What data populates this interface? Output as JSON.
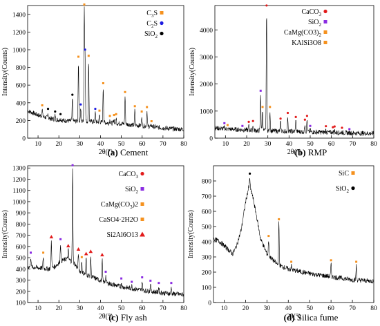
{
  "figure": {
    "captions": [
      {
        "letter": "(a)",
        "text": "Cement"
      },
      {
        "letter": "(b)",
        "text": "RMP"
      },
      {
        "letter": "(c)",
        "text": "Fly ash"
      },
      {
        "letter": "(d)",
        "text": "Silica fume"
      }
    ]
  },
  "colors": {
    "pattern": "#000000",
    "orange": "#f5911e",
    "blue": "#1d1be0",
    "black": "#000000",
    "red": "#e21b1b",
    "purple": "#8a2be2"
  },
  "chart_data": [
    {
      "type": "line",
      "xlabel": "2θ(°)",
      "ylabel": "Intensity(Counts)",
      "xlim": [
        5,
        80
      ],
      "ylim": [
        0,
        1500
      ],
      "xticks": [
        "10",
        "20",
        "30",
        "40",
        "50",
        "60",
        "70",
        "80"
      ],
      "yticks": [
        "0",
        "200",
        "400",
        "600",
        "800",
        "1000",
        "1200",
        "1400"
      ],
      "xtick_values": [
        10,
        20,
        30,
        40,
        50,
        60,
        70,
        80
      ],
      "ytick_values": [
        0,
        200,
        400,
        600,
        800,
        1000,
        1200,
        1400
      ],
      "baseline": [
        [
          5,
          310
        ],
        [
          10,
          260
        ],
        [
          15,
          225
        ],
        [
          20,
          205
        ],
        [
          25,
          195
        ],
        [
          30,
          190
        ],
        [
          35,
          190
        ],
        [
          40,
          180
        ],
        [
          45,
          170
        ],
        [
          50,
          165
        ],
        [
          55,
          150
        ],
        [
          60,
          140
        ],
        [
          65,
          130
        ],
        [
          70,
          115
        ],
        [
          75,
          105
        ],
        [
          80,
          100
        ]
      ],
      "peaks": [
        [
          12,
          340,
          "orange"
        ],
        [
          14.8,
          300,
          "black"
        ],
        [
          18.2,
          270,
          "black"
        ],
        [
          20.8,
          240,
          "black"
        ],
        [
          26.5,
          460,
          "black"
        ],
        [
          29.4,
          890,
          "orange"
        ],
        [
          30.5,
          350,
          "blue"
        ],
        [
          32.2,
          1480,
          "orange"
        ],
        [
          32.6,
          970,
          "blue"
        ],
        [
          34.3,
          900,
          "orange"
        ],
        [
          37.5,
          300,
          "blue"
        ],
        [
          39.5,
          280,
          "orange"
        ],
        [
          41.3,
          590,
          "orange"
        ],
        [
          44.5,
          220,
          "orange"
        ],
        [
          46.5,
          230,
          "orange"
        ],
        [
          47.5,
          240,
          "orange"
        ],
        [
          51.8,
          490,
          "orange"
        ],
        [
          56.5,
          330,
          "orange"
        ],
        [
          59.8,
          270,
          "orange"
        ],
        [
          62.3,
          320,
          "orange"
        ],
        [
          64.5,
          160,
          "orange"
        ]
      ],
      "legend": [
        {
          "label": "C3S",
          "main": "C",
          "sub": "3",
          "tail": "S",
          "color": "orange"
        },
        {
          "label": "C2S",
          "main": "C",
          "sub": "2",
          "tail": "S",
          "color": "blue"
        },
        {
          "label": "SiO2",
          "main": "SiO",
          "sub": "2",
          "tail": "",
          "color": "black"
        }
      ]
    },
    {
      "type": "line",
      "xlabel": "2θ(°)",
      "ylabel": "Intensity(Counts)",
      "xlim": [
        5,
        80
      ],
      "ylim": [
        0,
        4900
      ],
      "xticks": [
        "10",
        "20",
        "30",
        "40",
        "50",
        "60",
        "70",
        "80"
      ],
      "yticks": [
        "0",
        "1000",
        "2000",
        "3000",
        "4000"
      ],
      "xtick_values": [
        10,
        20,
        30,
        40,
        50,
        60,
        70,
        80
      ],
      "ytick_values": [
        0,
        1000,
        2000,
        3000,
        4000
      ],
      "baseline": [
        [
          5,
          380
        ],
        [
          10,
          340
        ],
        [
          15,
          320
        ],
        [
          20,
          300
        ],
        [
          25,
          280
        ],
        [
          30,
          270
        ],
        [
          40,
          250
        ],
        [
          50,
          230
        ],
        [
          60,
          210
        ],
        [
          70,
          190
        ],
        [
          80,
          170
        ]
      ],
      "peaks": [
        [
          9.5,
          450,
          "purple"
        ],
        [
          11,
          380,
          "orange"
        ],
        [
          18,
          350,
          "purple"
        ],
        [
          21,
          500,
          "red"
        ],
        [
          23,
          530,
          "red"
        ],
        [
          26.6,
          1650,
          "purple"
        ],
        [
          27.5,
          1050,
          "orange"
        ],
        [
          29.4,
          4800,
          "red"
        ],
        [
          31,
          1050,
          "orange"
        ],
        [
          36,
          620,
          "red"
        ],
        [
          39.4,
          830,
          "red"
        ],
        [
          43.2,
          680,
          "red"
        ],
        [
          47.5,
          580,
          "red"
        ],
        [
          48.5,
          720,
          "red"
        ],
        [
          50,
          350,
          "purple"
        ],
        [
          57.4,
          340,
          "red"
        ],
        [
          60.7,
          300,
          "red"
        ],
        [
          61.5,
          330,
          "red"
        ],
        [
          65,
          280,
          "red"
        ],
        [
          68.5,
          230,
          "purple"
        ]
      ],
      "legend": [
        {
          "label": "CaCO3",
          "main": "CaCO",
          "sub": "3",
          "tail": "",
          "color": "red"
        },
        {
          "label": "SiO2",
          "main": "SiO",
          "sub": "2",
          "tail": "",
          "color": "purple"
        },
        {
          "label": "CaMg(CO3)2",
          "main": "CaMg(CO3)",
          "sub": "2",
          "tail": "",
          "color": "orange"
        },
        {
          "label": "KAlSi3O8",
          "main": "KAlSi3O8",
          "sub": "",
          "tail": "",
          "color": "orange"
        }
      ]
    },
    {
      "type": "line",
      "xlabel": "2θ(°)",
      "ylabel": "Intensity(Counts)",
      "xlim": [
        5,
        80
      ],
      "ylim": [
        100,
        1320
      ],
      "xticks": [
        "10",
        "20",
        "30",
        "40",
        "50",
        "60",
        "70",
        "80"
      ],
      "yticks": [
        "100",
        "200",
        "300",
        "400",
        "500",
        "600",
        "700",
        "800",
        "900",
        "1000",
        "1100",
        "1200",
        "1300"
      ],
      "xtick_values": [
        10,
        20,
        30,
        40,
        50,
        60,
        70,
        80
      ],
      "ytick_values": [
        100,
        200,
        300,
        400,
        500,
        600,
        700,
        800,
        900,
        1000,
        1100,
        1200,
        1300
      ],
      "baseline": [
        [
          5,
          420
        ],
        [
          10,
          410
        ],
        [
          15,
          400
        ],
        [
          18,
          420
        ],
        [
          21,
          470
        ],
        [
          24,
          490
        ],
        [
          27,
          460
        ],
        [
          30,
          380
        ],
        [
          33,
          350
        ],
        [
          37,
          320
        ],
        [
          42,
          280
        ],
        [
          50,
          240
        ],
        [
          60,
          210
        ],
        [
          70,
          185
        ],
        [
          80,
          170
        ]
      ],
      "peaks": [
        [
          6.5,
          520,
          "purple"
        ],
        [
          12.5,
          520,
          "orange"
        ],
        [
          16.4,
          660,
          "red"
        ],
        [
          20.8,
          640,
          "purple"
        ],
        [
          24.5,
          580,
          "red"
        ],
        [
          26.6,
          1300,
          "purple"
        ],
        [
          29.4,
          550,
          "red"
        ],
        [
          31,
          480,
          "orange"
        ],
        [
          33.1,
          510,
          "red"
        ],
        [
          35.3,
          530,
          "red"
        ],
        [
          40.8,
          500,
          "red"
        ],
        [
          42.5,
          350,
          "purple"
        ],
        [
          50,
          290,
          "purple"
        ],
        [
          55,
          260,
          "purple"
        ],
        [
          60,
          300,
          "purple"
        ],
        [
          64,
          270,
          "purple"
        ],
        [
          68,
          250,
          "purple"
        ],
        [
          74,
          250,
          "purple"
        ]
      ],
      "legend": [
        {
          "label": "CaCO3",
          "main": "CaCO",
          "sub": "3",
          "tail": "",
          "color": "red"
        },
        {
          "label": "SiO2",
          "main": "SiO",
          "sub": "2",
          "tail": "",
          "color": "purple"
        },
        {
          "label": "CaMg(CO3)2",
          "main": "CaMg(CO",
          "sub": "3",
          "tail": ")2",
          "color": "orange"
        },
        {
          "label": "CaSO4·2H2O",
          "main": "CaSO4·2H2O",
          "sub": "",
          "tail": "",
          "color": "orange"
        },
        {
          "label": "Si2Al6O13",
          "main": "Si2Al6O13",
          "sub": "",
          "tail": "",
          "color": "red"
        }
      ]
    },
    {
      "type": "line",
      "xlabel": "2θ(°)",
      "ylabel": "Intensity(Counts)",
      "xlim": [
        5,
        80
      ],
      "ylim": [
        0,
        900
      ],
      "xticks": [
        "10",
        "20",
        "30",
        "40",
        "50",
        "60",
        "70",
        "80"
      ],
      "yticks": [
        "0",
        "100",
        "200",
        "300",
        "400",
        "500",
        "600",
        "700",
        "800"
      ],
      "xtick_values": [
        10,
        20,
        30,
        40,
        50,
        60,
        70,
        80
      ],
      "ytick_values": [
        0,
        100,
        200,
        300,
        400,
        500,
        600,
        700,
        800
      ],
      "baseline": [
        [
          5,
          420
        ],
        [
          8,
          400
        ],
        [
          11,
          360
        ],
        [
          14,
          320
        ],
        [
          16,
          380
        ],
        [
          18,
          480
        ],
        [
          20,
          660
        ],
        [
          21.5,
          760
        ],
        [
          23,
          720
        ],
        [
          25,
          580
        ],
        [
          27,
          420
        ],
        [
          30,
          320
        ],
        [
          35,
          250
        ],
        [
          40,
          220
        ],
        [
          50,
          190
        ],
        [
          60,
          170
        ],
        [
          70,
          150
        ],
        [
          80,
          140
        ]
      ],
      "peaks": [
        [
          22,
          830,
          "black"
        ],
        [
          35.6,
          530,
          "orange"
        ],
        [
          30.8,
          420,
          "orange"
        ],
        [
          41.4,
          250,
          "orange"
        ],
        [
          60,
          260,
          "orange"
        ],
        [
          71.8,
          250,
          "orange"
        ]
      ],
      "legend": [
        {
          "label": "SiC",
          "main": "SiC",
          "sub": "",
          "tail": "",
          "color": "orange"
        },
        {
          "label": "SiO2",
          "main": "SiO",
          "sub": "2",
          "tail": "",
          "color": "black"
        }
      ]
    }
  ]
}
